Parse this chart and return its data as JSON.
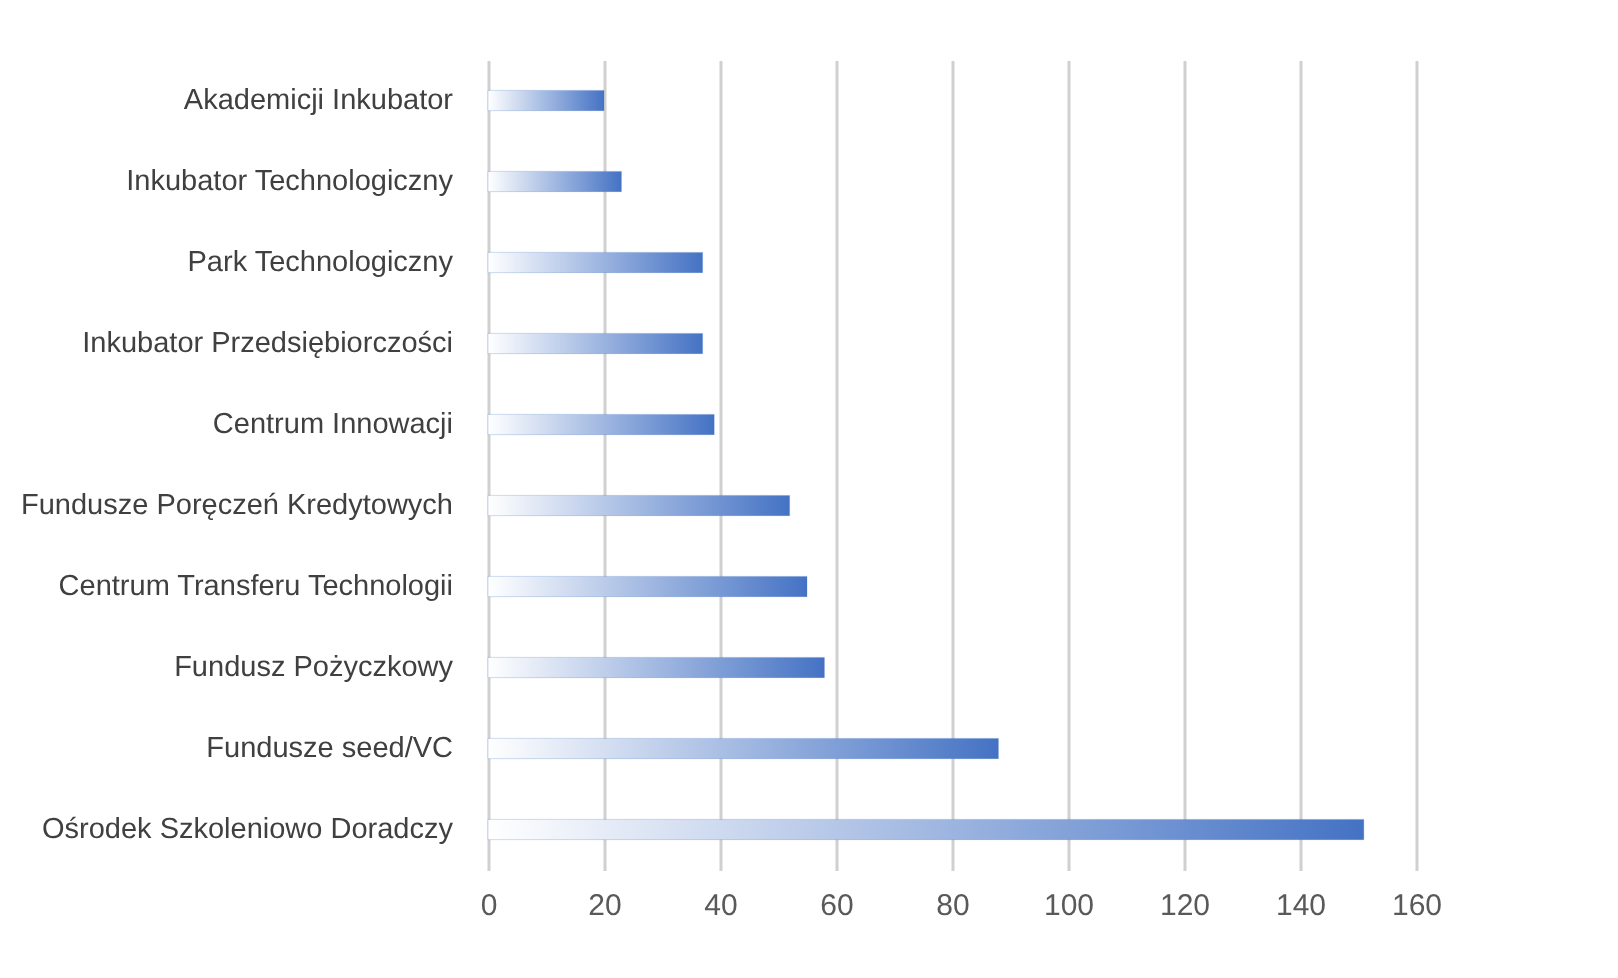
{
  "chart_data": {
    "type": "bar",
    "orientation": "horizontal",
    "categories": [
      "Akademicji Inkubator",
      "Inkubator Technologiczny",
      "Park Technologiczny",
      "Inkubator Przedsiębiorczości",
      "Centrum Innowacji",
      "Fundusze Poręczeń Kredytowych",
      "Centrum Transferu Technologii",
      "Fundusz Pożyczkowy",
      "Fundusze seed/VC",
      "Ośrodek Szkoleniowo Doradczy"
    ],
    "values": [
      20,
      23,
      37,
      37,
      39,
      52,
      55,
      58,
      88,
      151
    ],
    "color": "#4472c4",
    "xlim": [
      0,
      160
    ],
    "xticks": [
      0,
      20,
      40,
      60,
      80,
      100,
      120,
      140,
      160
    ],
    "grid": "x"
  }
}
